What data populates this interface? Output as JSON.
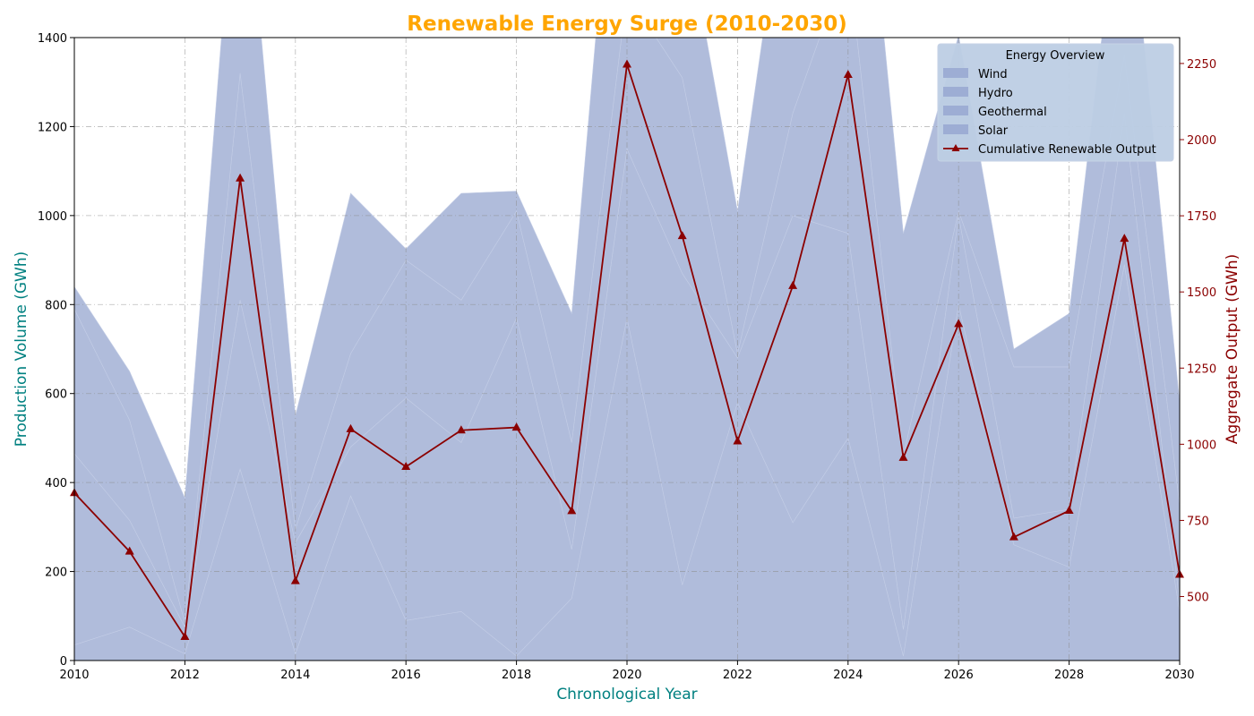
{
  "chart_data": {
    "type": "area",
    "title": "Renewable Energy Surge (2010-2030)",
    "xlabel": "Chronological Year",
    "ylabel": "Production Volume (GWh)",
    "y2label": "Aggregate Output (GWh)",
    "xlim": [
      2010,
      2030
    ],
    "ylim": [
      0,
      1400
    ],
    "y2lim": [
      290,
      2335
    ],
    "x_ticks": [
      "2010",
      "2012",
      "2014",
      "2016",
      "2018",
      "2020",
      "2022",
      "2024",
      "2026",
      "2028",
      "2030"
    ],
    "y_ticks": [
      "0",
      "200",
      "400",
      "600",
      "800",
      "1000",
      "1200",
      "1400"
    ],
    "y2_ticks": [
      "500",
      "750",
      "1000",
      "1250",
      "1500",
      "1750",
      "2000",
      "2250"
    ],
    "grid": true,
    "legend": {
      "title": "Energy Overview",
      "placement": "top-right"
    },
    "x": [
      2010,
      2011,
      2012,
      2013,
      2014,
      2015,
      2016,
      2017,
      2018,
      2019,
      2020,
      2021,
      2022,
      2023,
      2024,
      2025,
      2026,
      2027,
      2028,
      2029,
      2030
    ],
    "stacked_series": [
      {
        "name": "Wind",
        "values": [
          35,
          75,
          15,
          430,
          15,
          370,
          90,
          110,
          10,
          140,
          770,
          170,
          580,
          310,
          500,
          10,
          800,
          260,
          210,
          890,
          110
        ]
      },
      {
        "name": "Hydro",
        "values": [
          430,
          240,
          60,
          380,
          250,
          110,
          500,
          380,
          760,
          110,
          380,
          700,
          100,
          690,
          460,
          60,
          200,
          60,
          130,
          340,
          20
        ]
      },
      {
        "name": "Geothermal",
        "values": [
          325,
          225,
          10,
          510,
          30,
          210,
          310,
          320,
          240,
          240,
          350,
          440,
          10,
          230,
          620,
          390,
          10,
          340,
          320,
          130,
          220
        ]
      },
      {
        "name": "Solar",
        "values": [
          50,
          110,
          280,
          610,
          255,
          360,
          25,
          240,
          45,
          290,
          710,
          390,
          320,
          640,
          640,
          500,
          395,
          40,
          120,
          470,
          230
        ]
      }
    ],
    "line_series": {
      "name": "Cumulative Renewable Output",
      "axis": "right",
      "color": "#8b0000",
      "marker": "triangle",
      "values": [
        840,
        648,
        368,
        1873,
        551,
        1050,
        926,
        1046,
        1055,
        781,
        2247,
        1684,
        1010,
        1520,
        2213,
        956,
        1395,
        695,
        782,
        1675,
        572
      ]
    },
    "colors": {
      "area": "#b0bcdb",
      "area_legend": "#9dadd4",
      "title": "#ffa500",
      "left_axis": "#008080",
      "right_axis": "#8b0000",
      "legend_bg": "#bdcee4"
    }
  }
}
